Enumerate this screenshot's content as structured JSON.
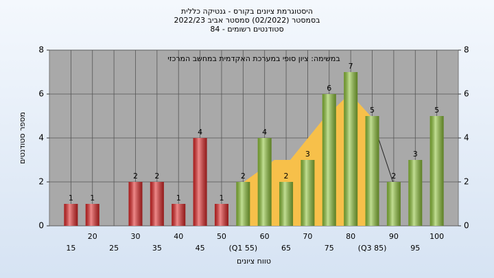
{
  "chart_data": {
    "type": "bar",
    "title": "היסטוגרמת ציונים בקורס - גנטיקה כללית",
    "subtitle": "בסמסטר  (02/2022)  סמסטר אביב 2022/23",
    "subtitle2": "סטודנטים רשומים - 84",
    "annotation": "במשימה: ציון סופי במערכת האקדמית במחשב המרכזי",
    "xlabel": "טווח ציונים",
    "ylabel": "מספר סטודנטים",
    "categories": [
      "15",
      "20",
      "25",
      "30",
      "35",
      "40",
      "45",
      "50",
      "(Q1 55)",
      "60",
      "65",
      "70",
      "75",
      "80",
      "(Q3 85)",
      "90",
      "95",
      "100"
    ],
    "values": [
      1,
      1,
      null,
      2,
      2,
      1,
      4,
      1,
      2,
      4,
      2,
      3,
      6,
      7,
      5,
      2,
      3,
      5
    ],
    "colors": [
      "#e02828",
      "#e02828",
      null,
      "#e02828",
      "#e02828",
      "#e02828",
      "#e02828",
      "#e02828",
      "#8fc43a",
      "#8fc43a",
      "#8fc43a",
      "#8fc43a",
      "#8fc43a",
      "#8fc43a",
      "#8fc43a",
      "#8fc43a",
      "#8fc43a",
      "#8fc43a"
    ],
    "ylim": [
      0,
      8
    ],
    "yticks": [
      0,
      2,
      4,
      6,
      8
    ],
    "y2lim": [
      0,
      8
    ],
    "y2ticks": [
      0,
      2,
      4,
      6,
      8
    ],
    "grid": true
  }
}
